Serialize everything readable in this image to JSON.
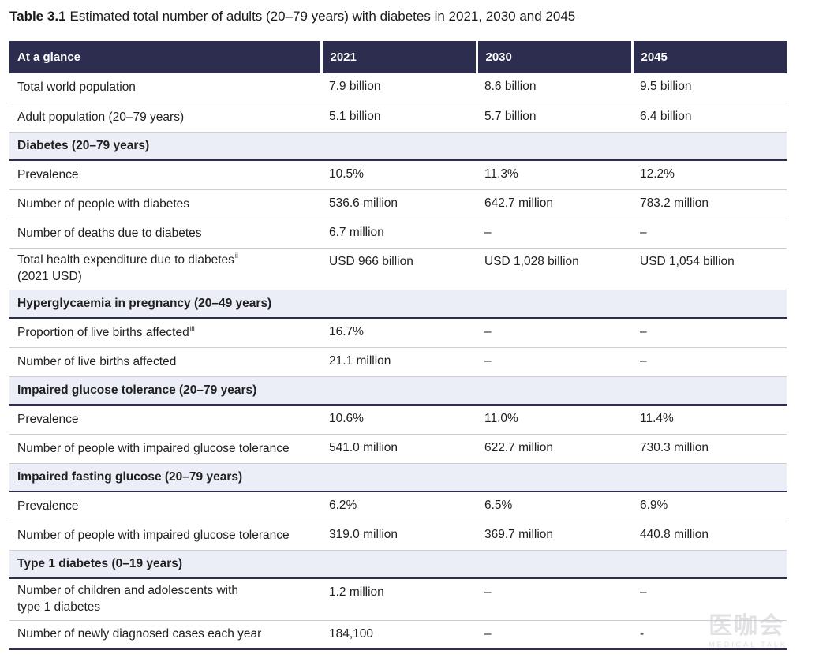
{
  "caption": {
    "number": "Table 3.1",
    "title": "Estimated total number of adults (20–79 years) with diabetes in 2021, 2030 and 2045"
  },
  "header": [
    "At a glance",
    "2021",
    "2030",
    "2045"
  ],
  "rows": [
    {
      "label": "Total world population",
      "values": [
        "7.9 billion",
        "8.6 billion",
        "9.5 billion"
      ]
    },
    {
      "label": "Adult population (20–79 years)",
      "values": [
        "5.1 billion",
        "5.7 billion",
        "6.4 billion"
      ]
    },
    {
      "section": "Diabetes (20–79 years)"
    },
    {
      "label": "Prevalence",
      "sup": "i",
      "values": [
        "10.5%",
        "11.3%",
        "12.2%"
      ]
    },
    {
      "label": "Number of people with diabetes",
      "values": [
        "536.6 million",
        "642.7 million",
        "783.2 million"
      ]
    },
    {
      "label": "Number of deaths due to diabetes",
      "values": [
        "6.7 million",
        "–",
        "–"
      ]
    },
    {
      "label": "Total health expenditure due to diabetes",
      "sup": "ii",
      "label2": "(2021 USD)",
      "values": [
        "USD 966 billion",
        "USD 1,028 billion",
        "USD 1,054 billion"
      ]
    },
    {
      "section": "Hyperglycaemia in pregnancy (20–49 years)"
    },
    {
      "label": "Proportion of live births affected",
      "sup": "iii",
      "values": [
        "16.7%",
        "–",
        "–"
      ]
    },
    {
      "label": "Number of live births affected",
      "values": [
        "21.1 million",
        "–",
        "–"
      ]
    },
    {
      "section": "Impaired glucose tolerance (20–79 years)"
    },
    {
      "label": "Prevalence",
      "sup": "i",
      "values": [
        "10.6%",
        "11.0%",
        "11.4%"
      ]
    },
    {
      "label": "Number of people with impaired glucose tolerance",
      "values": [
        "541.0 million",
        "622.7 million",
        "730.3 million"
      ]
    },
    {
      "section": "Impaired fasting glucose (20–79 years)"
    },
    {
      "label": "Prevalence",
      "sup": "i",
      "values": [
        "6.2%",
        "6.5%",
        "6.9%"
      ]
    },
    {
      "label": "Number of people with impaired glucose tolerance",
      "values": [
        "319.0 million",
        "369.7 million",
        "440.8 million"
      ]
    },
    {
      "section": "Type 1 diabetes (0–19 years)"
    },
    {
      "label": "Number of children and adolescents with",
      "label2": "type 1 diabetes",
      "values": [
        "1.2 million",
        "–",
        "–"
      ]
    },
    {
      "label": "Number of newly diagnosed cases each year",
      "values": [
        "184,100",
        "–",
        "-"
      ]
    }
  ],
  "watermark": {
    "text": "医咖会",
    "sub": "MEDICAL TALK"
  }
}
